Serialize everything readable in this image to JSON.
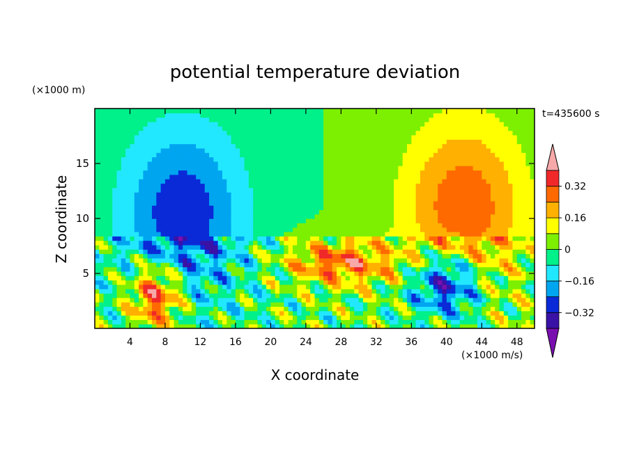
{
  "chart_data": {
    "type": "heatmap",
    "title": "potential temperature deviation",
    "xlabel": "X coordinate",
    "ylabel": "Z coordinate",
    "x_unit": "(×1000 m/s)",
    "y_unit": "(×1000 m)",
    "time_label": "t=435600 s",
    "xlim": [
      0,
      50
    ],
    "ylim": [
      0,
      20
    ],
    "xticks": [
      4,
      8,
      12,
      16,
      20,
      24,
      28,
      32,
      36,
      40,
      44,
      48
    ],
    "yticks": [
      5,
      10,
      15
    ],
    "colorbar": {
      "levels": [
        -0.4,
        -0.32,
        -0.24,
        -0.16,
        -0.08,
        0,
        0.08,
        0.16,
        0.24,
        0.32,
        0.4
      ],
      "labels": [
        "0.32",
        "0.16",
        "0",
        "−0.16",
        "−0.32"
      ],
      "label_values": [
        0.32,
        0.16,
        0,
        -0.16,
        -0.32
      ],
      "colors": [
        "#7a0fb0",
        "#3a12a6",
        "#0a2ad8",
        "#00a5f0",
        "#22e8ff",
        "#00f08a",
        "#7cf000",
        "#ffff00",
        "#ffb000",
        "#ff6a00",
        "#f0282a",
        "#f7a8a8"
      ]
    },
    "features": [
      {
        "x": 10,
        "z": 10.5,
        "rx": 7,
        "rz": 8,
        "value": -0.3
      },
      {
        "x": 42,
        "z": 11,
        "rx": 7,
        "rz": 8,
        "value": 0.3
      },
      {
        "x": 40,
        "z": 4,
        "rx": 4,
        "rz": 3,
        "value": -0.4
      },
      {
        "x": 7,
        "z": 3,
        "rx": 3,
        "rz": 3,
        "value": 0.4
      },
      {
        "x": 28,
        "z": 6,
        "rx": 6,
        "rz": 2,
        "value": 0.3
      }
    ]
  }
}
